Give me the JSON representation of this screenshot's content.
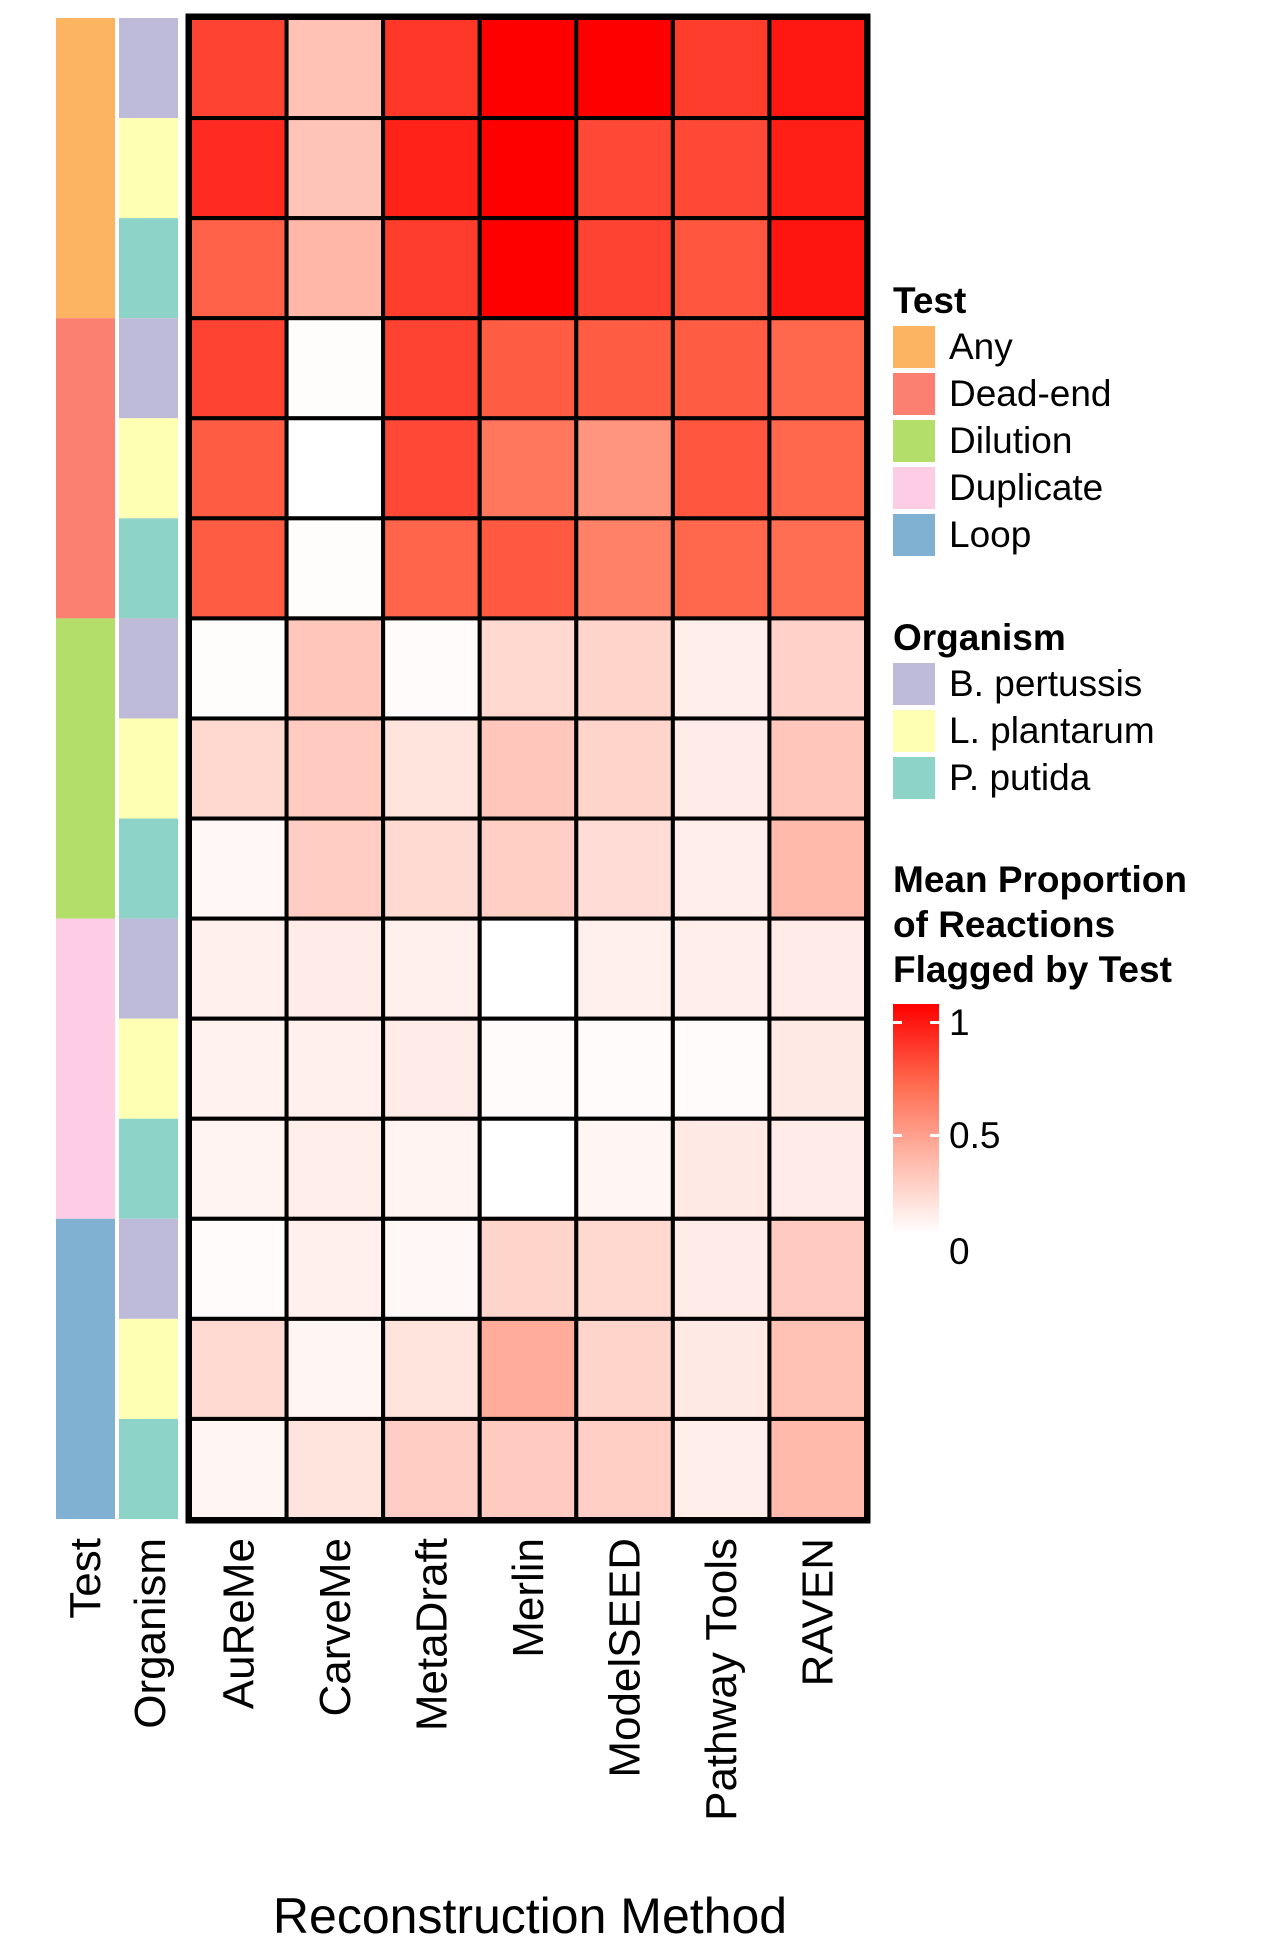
{
  "chart_data": {
    "type": "heatmap",
    "title": "",
    "xlabel": "Reconstruction Method",
    "ylabel": "",
    "x": [
      "AuReMe",
      "CarveMe",
      "MetaDraft",
      "Merlin",
      "ModelSEED",
      "Pathway Tools",
      "RAVEN"
    ],
    "annotation_labels": [
      "Test",
      "Organism"
    ],
    "rows": [
      {
        "test": "Any",
        "organism": "B. pertussis",
        "values": [
          0.78,
          0.28,
          0.82,
          1.0,
          1.0,
          0.8,
          0.92
        ]
      },
      {
        "test": "Any",
        "organism": "L. plantarum",
        "values": [
          0.86,
          0.27,
          0.89,
          1.0,
          0.76,
          0.76,
          0.9
        ]
      },
      {
        "test": "Any",
        "organism": "P. putida",
        "values": [
          0.68,
          0.33,
          0.8,
          1.0,
          0.78,
          0.72,
          0.93
        ]
      },
      {
        "test": "Dead-end",
        "organism": "B. pertussis",
        "values": [
          0.78,
          0.01,
          0.78,
          0.7,
          0.7,
          0.7,
          0.66
        ]
      },
      {
        "test": "Dead-end",
        "organism": "L. plantarum",
        "values": [
          0.7,
          0.0,
          0.76,
          0.6,
          0.48,
          0.72,
          0.66
        ]
      },
      {
        "test": "Dead-end",
        "organism": "P. putida",
        "values": [
          0.7,
          0.01,
          0.67,
          0.71,
          0.56,
          0.66,
          0.64
        ]
      },
      {
        "test": "Dilution",
        "organism": "B. pertussis",
        "values": [
          0.01,
          0.26,
          0.02,
          0.18,
          0.2,
          0.08,
          0.21
        ]
      },
      {
        "test": "Dilution",
        "organism": "L. plantarum",
        "values": [
          0.18,
          0.24,
          0.13,
          0.26,
          0.2,
          0.09,
          0.26
        ]
      },
      {
        "test": "Dilution",
        "organism": "P. putida",
        "values": [
          0.03,
          0.23,
          0.17,
          0.22,
          0.16,
          0.08,
          0.32
        ]
      },
      {
        "test": "Duplicate",
        "organism": "B. pertussis",
        "values": [
          0.07,
          0.09,
          0.07,
          0.0,
          0.07,
          0.08,
          0.09
        ]
      },
      {
        "test": "Duplicate",
        "organism": "L. plantarum",
        "values": [
          0.06,
          0.07,
          0.09,
          0.02,
          0.02,
          0.02,
          0.1
        ]
      },
      {
        "test": "Duplicate",
        "organism": "P. putida",
        "values": [
          0.05,
          0.08,
          0.05,
          0.0,
          0.04,
          0.1,
          0.09
        ]
      },
      {
        "test": "Loop",
        "organism": "B. pertussis",
        "values": [
          0.02,
          0.07,
          0.03,
          0.2,
          0.18,
          0.09,
          0.24
        ]
      },
      {
        "test": "Loop",
        "organism": "L. plantarum",
        "values": [
          0.17,
          0.04,
          0.13,
          0.38,
          0.2,
          0.1,
          0.28
        ]
      },
      {
        "test": "Loop",
        "organism": "P. putida",
        "values": [
          0.04,
          0.13,
          0.23,
          0.24,
          0.22,
          0.08,
          0.32
        ]
      }
    ],
    "legend_test": {
      "title": "Test",
      "items": [
        {
          "label": "Any",
          "color": "#fdb462"
        },
        {
          "label": "Dead-end",
          "color": "#fb8072"
        },
        {
          "label": "Dilution",
          "color": "#b3de69"
        },
        {
          "label": "Duplicate",
          "color": "#fccde5"
        },
        {
          "label": "Loop",
          "color": "#80b1d3"
        }
      ]
    },
    "legend_organism": {
      "title": "Organism",
      "items": [
        {
          "label": "B. pertussis",
          "color": "#bebada"
        },
        {
          "label": "L. plantarum",
          "color": "#ffffb3"
        },
        {
          "label": "P. putida",
          "color": "#8dd3c7"
        }
      ]
    },
    "color_scale": {
      "title_lines": [
        "Mean Proportion",
        "of Reactions",
        "Flagged by Test"
      ],
      "min": 0,
      "max": 1,
      "tick_labels": [
        "1",
        "0.5",
        "0"
      ],
      "low_color": "#ffffff",
      "high_color": "#ff0000"
    },
    "grid": true,
    "legend_position": "right"
  }
}
